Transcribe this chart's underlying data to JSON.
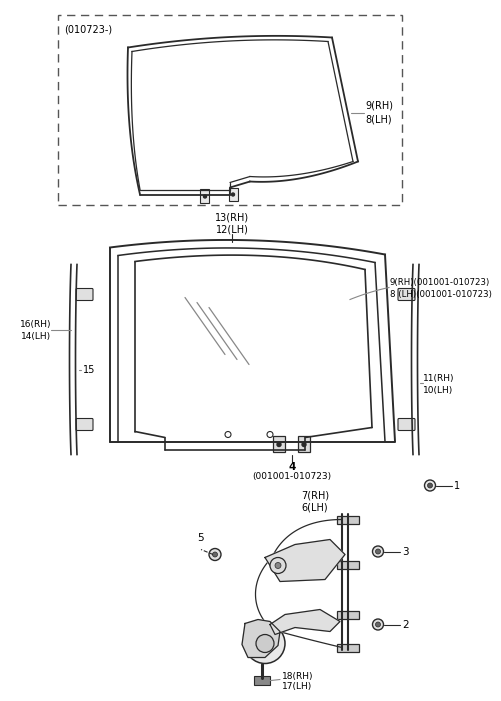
{
  "bg_color": "#ffffff",
  "line_color": "#2a2a2a",
  "labels": {
    "top_box": "(010723-)",
    "label_9rh": "9(RH)",
    "label_8lh": "8(LH)",
    "label_13rh": "13(RH)",
    "label_12lh": "12(LH)",
    "label_9rh2": "9(RH)(001001-010723)",
    "label_8lh2": "8 (LH)(001001-010723)",
    "label_4": "4",
    "label_4sub": "(001001-010723)",
    "label_16rh": "16(RH)",
    "label_14lh": "14(LH)",
    "label_15": "15",
    "label_11rh": "11(RH)",
    "label_10lh": "10(LH)",
    "label_1": "1",
    "label_7rh": "7(RH)",
    "label_6lh": "6(LH)",
    "label_5": "5",
    "label_3": "3",
    "label_2": "2",
    "label_18rh": "18(RH)",
    "label_17lh": "17(LH)"
  }
}
